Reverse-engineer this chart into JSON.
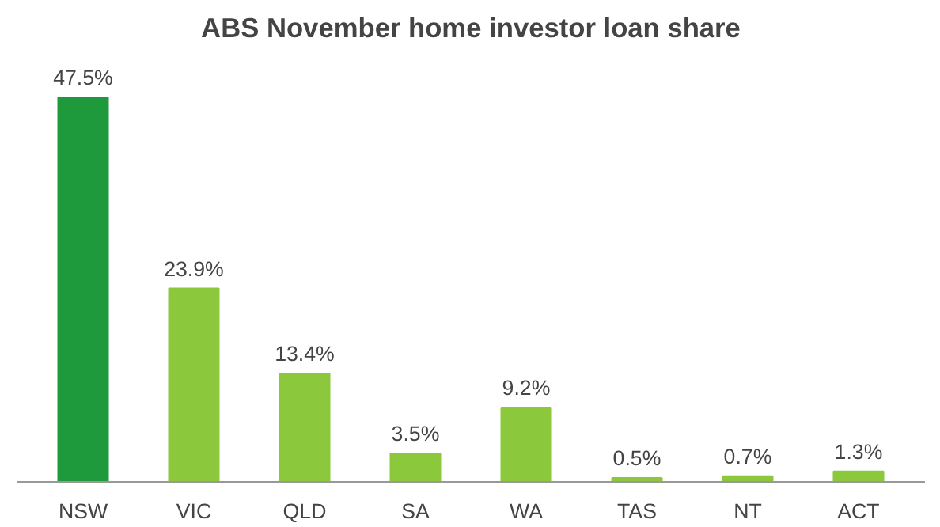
{
  "chart_data": {
    "type": "bar",
    "title": "ABS November home investor loan share",
    "categories": [
      "NSW",
      "VIC",
      "QLD",
      "SA",
      "WA",
      "TAS",
      "NT",
      "ACT"
    ],
    "values": [
      47.5,
      23.9,
      13.4,
      3.5,
      9.2,
      0.5,
      0.7,
      1.3
    ],
    "value_labels": [
      "47.5%",
      "23.9%",
      "13.4%",
      "3.5%",
      "9.2%",
      "0.5%",
      "0.7%",
      "1.3%"
    ],
    "colors": [
      "#1e9a3c",
      "#8cc83c",
      "#8cc83c",
      "#8cc83c",
      "#8cc83c",
      "#8cc83c",
      "#8cc83c",
      "#8cc83c"
    ],
    "tick_labels": "x",
    "grid": false
  }
}
